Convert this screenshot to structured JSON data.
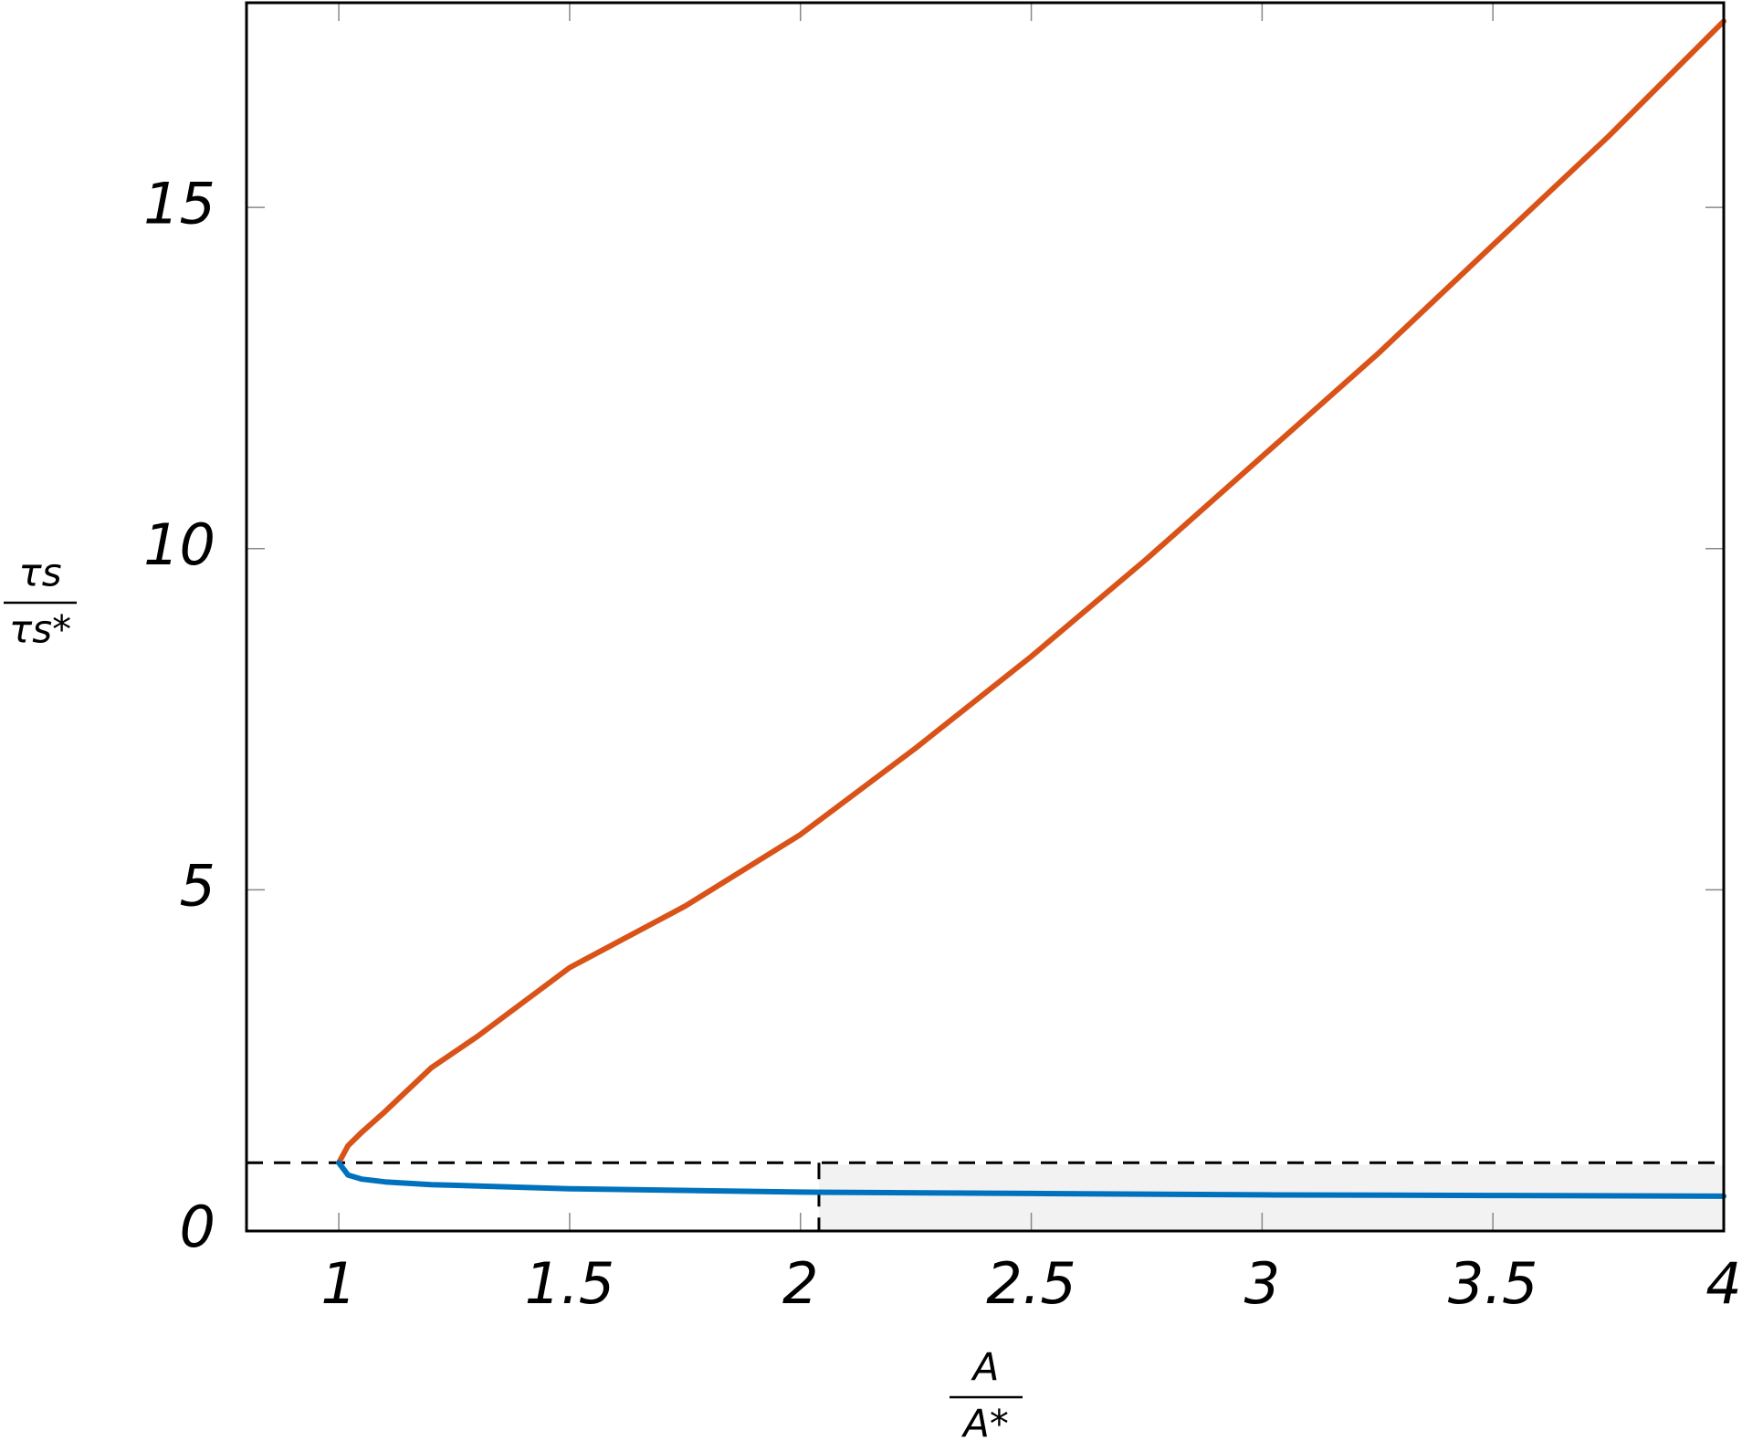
{
  "chart_data": {
    "type": "line",
    "x_label": {
      "numerator": "A",
      "denominator": "A*"
    },
    "y_label": {
      "numerator": "τs",
      "denominator": "τs*"
    },
    "xlim": [
      0.8,
      4
    ],
    "ylim": [
      0,
      18
    ],
    "xticks": [
      1,
      1.5,
      2,
      2.5,
      3,
      3.5,
      4
    ],
    "yticks": [
      0,
      5,
      10,
      15
    ],
    "hline": 1,
    "vline": {
      "x": 2.04,
      "ymax": 1
    },
    "shade": {
      "x": [
        2.04,
        4
      ],
      "y": [
        0,
        0.97
      ],
      "color": "#f2f2f2"
    },
    "series": [
      {
        "color": "#d95319",
        "x": [
          1,
          1.02,
          1.05,
          1.1,
          1.2,
          1.3,
          1.5,
          1.75,
          2,
          2.25,
          2.5,
          2.75,
          3,
          3.25,
          3.5,
          3.75,
          4
        ],
        "values": [
          1,
          1.25,
          1.45,
          1.75,
          2.39,
          2.85,
          3.86,
          4.76,
          5.81,
          7.08,
          8.42,
          9.85,
          11.35,
          12.85,
          14.45,
          16.04,
          17.73
        ]
      },
      {
        "color": "#0072bd",
        "x": [
          1,
          1.02,
          1.05,
          1.1,
          1.2,
          1.5,
          2,
          2.5,
          3,
          3.5,
          4
        ],
        "values": [
          1,
          0.82,
          0.76,
          0.72,
          0.68,
          0.62,
          0.57,
          0.55,
          0.53,
          0.52,
          0.51
        ]
      }
    ]
  }
}
